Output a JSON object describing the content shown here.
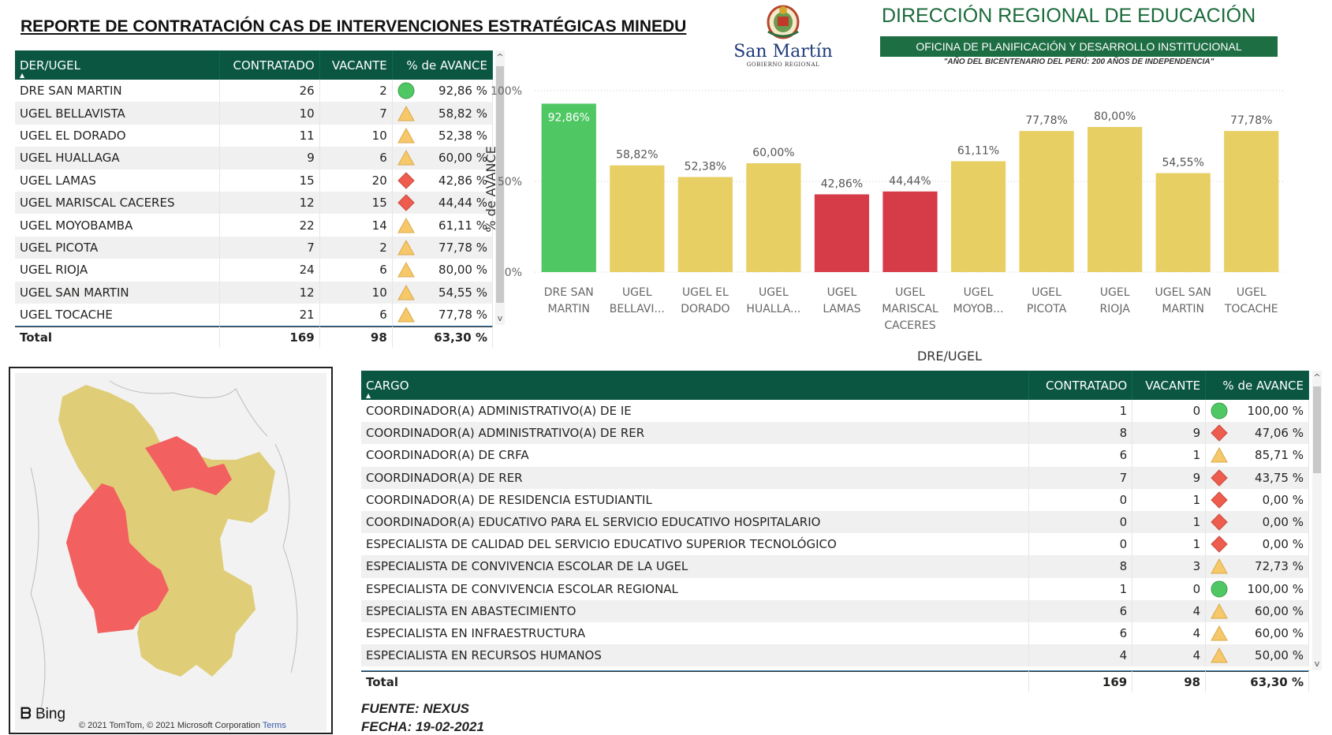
{
  "report_title": "REPORTE DE CONTRATACIÓN CAS DE INTERVENCIONES ESTRATÉGICAS MINEDU",
  "logo": {
    "name": "San Martín",
    "sub": "GOBIERNO REGIONAL"
  },
  "header": {
    "heading": "DIRECCIÓN REGIONAL DE EDUCACIÓN",
    "office": "OFICINA DE PLANIFICACIÓN Y DESARROLLO INSTITUCIONAL",
    "motto": "\"AÑO DEL BICENTENARIO DEL PERÚ: 200 AÑOS DE INDEPENDENCIA\""
  },
  "colors": {
    "header_bg": "#0a5640",
    "green": "#4fc864",
    "yellow": "#e8cf63",
    "red": "#d63c48"
  },
  "ugel_table": {
    "columns": [
      "DER/UGEL",
      "CONTRATADO",
      "VACANTE",
      "% de AVANCE"
    ],
    "rows": [
      {
        "name": "DRE SAN MARTIN",
        "contratado": "26",
        "vacante": "2",
        "avance": "92,86 %",
        "indicator": "green-circle"
      },
      {
        "name": "UGEL BELLAVISTA",
        "contratado": "10",
        "vacante": "7",
        "avance": "58,82 %",
        "indicator": "yellow-triangle"
      },
      {
        "name": "UGEL EL DORADO",
        "contratado": "11",
        "vacante": "10",
        "avance": "52,38 %",
        "indicator": "yellow-triangle"
      },
      {
        "name": "UGEL HUALLAGA",
        "contratado": "9",
        "vacante": "6",
        "avance": "60,00 %",
        "indicator": "yellow-triangle"
      },
      {
        "name": "UGEL LAMAS",
        "contratado": "15",
        "vacante": "20",
        "avance": "42,86 %",
        "indicator": "red-diamond"
      },
      {
        "name": "UGEL MARISCAL CACERES",
        "contratado": "12",
        "vacante": "15",
        "avance": "44,44 %",
        "indicator": "red-diamond"
      },
      {
        "name": "UGEL MOYOBAMBA",
        "contratado": "22",
        "vacante": "14",
        "avance": "61,11 %",
        "indicator": "yellow-triangle"
      },
      {
        "name": "UGEL PICOTA",
        "contratado": "7",
        "vacante": "2",
        "avance": "77,78 %",
        "indicator": "yellow-triangle"
      },
      {
        "name": "UGEL RIOJA",
        "contratado": "24",
        "vacante": "6",
        "avance": "80,00 %",
        "indicator": "yellow-triangle"
      },
      {
        "name": "UGEL SAN MARTIN",
        "contratado": "12",
        "vacante": "10",
        "avance": "54,55 %",
        "indicator": "yellow-triangle"
      },
      {
        "name": "UGEL TOCACHE",
        "contratado": "21",
        "vacante": "6",
        "avance": "77,78 %",
        "indicator": "yellow-triangle"
      }
    ],
    "total": {
      "label": "Total",
      "contratado": "169",
      "vacante": "98",
      "avance": "63,30 %"
    }
  },
  "cargo_table": {
    "columns": [
      "CARGO",
      "CONTRATADO",
      "VACANTE",
      "% de AVANCE"
    ],
    "rows": [
      {
        "name": "COORDINADOR(A) ADMINISTRATIVO(A) DE IE",
        "contratado": "1",
        "vacante": "0",
        "avance": "100,00 %",
        "indicator": "green-circle"
      },
      {
        "name": "COORDINADOR(A) ADMINISTRATIVO(A) DE RER",
        "contratado": "8",
        "vacante": "9",
        "avance": "47,06 %",
        "indicator": "red-diamond"
      },
      {
        "name": "COORDINADOR(A) DE CRFA",
        "contratado": "6",
        "vacante": "1",
        "avance": "85,71 %",
        "indicator": "yellow-triangle"
      },
      {
        "name": "COORDINADOR(A) DE RER",
        "contratado": "7",
        "vacante": "9",
        "avance": "43,75 %",
        "indicator": "red-diamond"
      },
      {
        "name": "COORDINADOR(A) DE RESIDENCIA ESTUDIANTIL",
        "contratado": "0",
        "vacante": "1",
        "avance": "0,00 %",
        "indicator": "red-diamond"
      },
      {
        "name": "COORDINADOR(A) EDUCATIVO PARA EL SERVICIO EDUCATIVO HOSPITALARIO",
        "contratado": "0",
        "vacante": "1",
        "avance": "0,00 %",
        "indicator": "red-diamond"
      },
      {
        "name": "ESPECIALISTA DE CALIDAD DEL SERVICIO EDUCATIVO SUPERIOR TECNOLÓGICO",
        "contratado": "0",
        "vacante": "1",
        "avance": "0,00 %",
        "indicator": "red-diamond"
      },
      {
        "name": "ESPECIALISTA DE CONVIVENCIA ESCOLAR DE LA UGEL",
        "contratado": "8",
        "vacante": "3",
        "avance": "72,73 %",
        "indicator": "yellow-triangle"
      },
      {
        "name": "ESPECIALISTA DE CONVIVENCIA ESCOLAR REGIONAL",
        "contratado": "1",
        "vacante": "0",
        "avance": "100,00 %",
        "indicator": "green-circle"
      },
      {
        "name": "ESPECIALISTA EN ABASTECIMIENTO",
        "contratado": "6",
        "vacante": "4",
        "avance": "60,00 %",
        "indicator": "yellow-triangle"
      },
      {
        "name": "ESPECIALISTA EN INFRAESTRUCTURA",
        "contratado": "6",
        "vacante": "4",
        "avance": "60,00 %",
        "indicator": "yellow-triangle"
      },
      {
        "name": "ESPECIALISTA EN RECURSOS HUMANOS",
        "contratado": "4",
        "vacante": "4",
        "avance": "50,00 %",
        "indicator": "yellow-triangle"
      }
    ],
    "total": {
      "label": "Total",
      "contratado": "169",
      "vacante": "98",
      "avance": "63,30 %"
    }
  },
  "chart_data": {
    "type": "bar",
    "title": "",
    "xlabel": "DRE/UGEL",
    "ylabel": "% de AVANCE",
    "ylim": [
      0,
      100
    ],
    "yticks": [
      "0%",
      "50%",
      "100%"
    ],
    "grid": true,
    "categories": [
      [
        "DRE SAN",
        "MARTIN"
      ],
      [
        "UGEL",
        "BELLAVI..."
      ],
      [
        "UGEL EL",
        "DORADO"
      ],
      [
        "UGEL",
        "HUALLA..."
      ],
      [
        "UGEL",
        "LAMAS"
      ],
      [
        "UGEL",
        "MARISCAL",
        "CACERES"
      ],
      [
        "UGEL",
        "MOYOB..."
      ],
      [
        "UGEL",
        "PICOTA"
      ],
      [
        "UGEL",
        "RIOJA"
      ],
      [
        "UGEL SAN",
        "MARTIN"
      ],
      [
        "UGEL",
        "TOCACHE"
      ]
    ],
    "values": [
      92.86,
      58.82,
      52.38,
      60.0,
      42.86,
      44.44,
      61.11,
      77.78,
      80.0,
      54.55,
      77.78
    ],
    "labels": [
      "92,86%",
      "58,82%",
      "52,38%",
      "60,00%",
      "42,86%",
      "44,44%",
      "61,11%",
      "77,78%",
      "80,00%",
      "54,55%",
      "77,78%"
    ],
    "bar_colors": [
      "#4fc864",
      "#e8cf63",
      "#e8cf63",
      "#e8cf63",
      "#d63c48",
      "#d63c48",
      "#e8cf63",
      "#e8cf63",
      "#e8cf63",
      "#e8cf63",
      "#e8cf63"
    ]
  },
  "map": {
    "provider": "Bing",
    "copyright": "© 2021 TomTom, © 2021 Microsoft Corporation",
    "terms": "Terms"
  },
  "footer": {
    "source": "FUENTE: NEXUS",
    "date": "FECHA: 19-02-2021"
  }
}
